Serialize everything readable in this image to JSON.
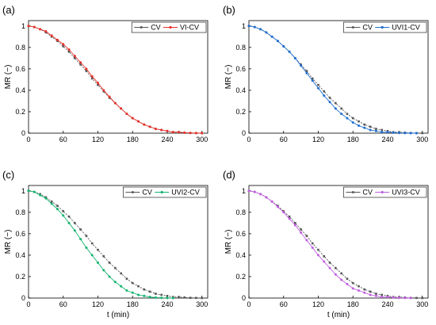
{
  "chart_data": [
    {
      "type": "line",
      "panel_label": "(a)",
      "ylabel": "MR (−)",
      "xlabel": "",
      "xlim": [
        0,
        310
      ],
      "ylim": [
        0,
        1.05
      ],
      "xticks": [
        0,
        60,
        120,
        180,
        240,
        300
      ],
      "yticks": [
        0,
        0.2,
        0.4,
        0.6,
        0.8,
        1
      ],
      "grid": false,
      "legend_position": "top-right",
      "series": [
        {
          "name": "CV",
          "color": "#555555",
          "marker": "square",
          "x": [
            0,
            10,
            20,
            30,
            40,
            50,
            60,
            70,
            80,
            90,
            100,
            110,
            120,
            130,
            140,
            150,
            160,
            170,
            180,
            190,
            200,
            210,
            220,
            230,
            240,
            250,
            260,
            270,
            280,
            290,
            300
          ],
          "y": [
            1,
            0.99,
            0.97,
            0.94,
            0.9,
            0.86,
            0.81,
            0.76,
            0.7,
            0.64,
            0.58,
            0.51,
            0.45,
            0.39,
            0.33,
            0.28,
            0.23,
            0.18,
            0.14,
            0.11,
            0.08,
            0.06,
            0.04,
            0.03,
            0.02,
            0.01,
            0.01,
            0.005,
            0.002,
            0.001,
            0
          ]
        },
        {
          "name": "VI-CV",
          "color": "#e8312a",
          "marker": "circle",
          "x": [
            0,
            10,
            20,
            30,
            40,
            50,
            60,
            70,
            80,
            90,
            100,
            110,
            120,
            130,
            140,
            150,
            160,
            170,
            180,
            190,
            200,
            210,
            220,
            230,
            240,
            250,
            260,
            270,
            280,
            290,
            300
          ],
          "y": [
            1,
            0.99,
            0.97,
            0.95,
            0.91,
            0.87,
            0.83,
            0.78,
            0.72,
            0.66,
            0.6,
            0.53,
            0.47,
            0.4,
            0.34,
            0.28,
            0.23,
            0.18,
            0.14,
            0.11,
            0.08,
            0.06,
            0.04,
            0.03,
            0.02,
            0.01,
            0.01,
            0.005,
            0.002,
            0.001,
            0
          ]
        }
      ]
    },
    {
      "type": "line",
      "panel_label": "(b)",
      "ylabel": "MR (−)",
      "xlabel": "",
      "xlim": [
        0,
        310
      ],
      "ylim": [
        0,
        1.05
      ],
      "xticks": [
        0,
        60,
        120,
        180,
        240,
        300
      ],
      "yticks": [
        0,
        0.2,
        0.4,
        0.6,
        0.8,
        1
      ],
      "grid": false,
      "legend_position": "top-right",
      "series": [
        {
          "name": "CV",
          "color": "#555555",
          "marker": "square",
          "x": [
            0,
            10,
            20,
            30,
            40,
            50,
            60,
            70,
            80,
            90,
            100,
            110,
            120,
            130,
            140,
            150,
            160,
            170,
            180,
            190,
            200,
            210,
            220,
            230,
            240,
            250,
            260,
            270,
            280,
            290,
            300
          ],
          "y": [
            1,
            0.99,
            0.97,
            0.94,
            0.9,
            0.86,
            0.81,
            0.76,
            0.7,
            0.64,
            0.58,
            0.51,
            0.45,
            0.39,
            0.33,
            0.28,
            0.23,
            0.18,
            0.14,
            0.11,
            0.08,
            0.06,
            0.04,
            0.03,
            0.02,
            0.01,
            0.01,
            0.005,
            0.002,
            0.001,
            0
          ]
        },
        {
          "name": "UVI1-CV",
          "color": "#1f6fd1",
          "marker": "circle",
          "x": [
            0,
            10,
            20,
            30,
            40,
            50,
            60,
            70,
            80,
            90,
            100,
            110,
            120,
            130,
            140,
            150,
            160,
            170,
            180,
            190,
            200,
            210,
            220,
            230,
            240,
            250,
            260,
            270,
            280,
            290
          ],
          "y": [
            1,
            0.99,
            0.97,
            0.94,
            0.9,
            0.86,
            0.81,
            0.76,
            0.7,
            0.63,
            0.56,
            0.49,
            0.42,
            0.35,
            0.29,
            0.23,
            0.18,
            0.14,
            0.1,
            0.07,
            0.05,
            0.03,
            0.02,
            0.01,
            0.01,
            0.005,
            0.002,
            0.001,
            0,
            0
          ]
        }
      ]
    },
    {
      "type": "line",
      "panel_label": "(c)",
      "ylabel": "MR (−)",
      "xlabel": "t (min)",
      "xlim": [
        0,
        310
      ],
      "ylim": [
        0,
        1.05
      ],
      "xticks": [
        0,
        60,
        120,
        180,
        240,
        300
      ],
      "yticks": [
        0,
        0.2,
        0.4,
        0.6,
        0.8,
        1
      ],
      "grid": false,
      "legend_position": "top-right",
      "series": [
        {
          "name": "CV",
          "color": "#555555",
          "marker": "square",
          "x": [
            0,
            10,
            20,
            30,
            40,
            50,
            60,
            70,
            80,
            90,
            100,
            110,
            120,
            130,
            140,
            150,
            160,
            170,
            180,
            190,
            200,
            210,
            220,
            230,
            240,
            250,
            260,
            270,
            280,
            290,
            300
          ],
          "y": [
            1,
            0.99,
            0.97,
            0.94,
            0.9,
            0.86,
            0.81,
            0.76,
            0.7,
            0.64,
            0.58,
            0.51,
            0.45,
            0.39,
            0.33,
            0.28,
            0.23,
            0.18,
            0.14,
            0.11,
            0.08,
            0.06,
            0.04,
            0.03,
            0.02,
            0.01,
            0.01,
            0.005,
            0.002,
            0.001,
            0
          ]
        },
        {
          "name": "UVI2-CV",
          "color": "#16b36f",
          "marker": "circle",
          "x": [
            0,
            10,
            20,
            30,
            40,
            50,
            60,
            70,
            80,
            90,
            100,
            110,
            120,
            130,
            140,
            150,
            160,
            170,
            180,
            190,
            200,
            210,
            220,
            230,
            240,
            250
          ],
          "y": [
            1,
            0.99,
            0.96,
            0.93,
            0.88,
            0.83,
            0.77,
            0.7,
            0.63,
            0.55,
            0.47,
            0.4,
            0.33,
            0.26,
            0.2,
            0.15,
            0.11,
            0.07,
            0.05,
            0.03,
            0.02,
            0.01,
            0.005,
            0.002,
            0.001,
            0
          ]
        }
      ]
    },
    {
      "type": "line",
      "panel_label": "(d)",
      "ylabel": "MR (−)",
      "xlabel": "t (min)",
      "xlim": [
        0,
        310
      ],
      "ylim": [
        0,
        1.05
      ],
      "xticks": [
        0,
        60,
        120,
        180,
        240,
        300
      ],
      "yticks": [
        0,
        0.2,
        0.4,
        0.6,
        0.8,
        1
      ],
      "grid": false,
      "legend_position": "top-right",
      "series": [
        {
          "name": "CV",
          "color": "#555555",
          "marker": "square",
          "x": [
            0,
            10,
            20,
            30,
            40,
            50,
            60,
            70,
            80,
            90,
            100,
            110,
            120,
            130,
            140,
            150,
            160,
            170,
            180,
            190,
            200,
            210,
            220,
            230,
            240,
            250,
            260,
            270,
            280,
            290,
            300
          ],
          "y": [
            1,
            0.99,
            0.97,
            0.94,
            0.9,
            0.86,
            0.81,
            0.76,
            0.7,
            0.64,
            0.58,
            0.51,
            0.45,
            0.39,
            0.33,
            0.28,
            0.23,
            0.18,
            0.14,
            0.11,
            0.08,
            0.06,
            0.04,
            0.03,
            0.02,
            0.01,
            0.01,
            0.005,
            0.002,
            0.001,
            0
          ]
        },
        {
          "name": "UVI3-CV",
          "color": "#c060e0",
          "marker": "circle",
          "x": [
            0,
            10,
            20,
            30,
            40,
            50,
            60,
            70,
            80,
            90,
            100,
            110,
            120,
            130,
            140,
            150,
            160,
            170,
            180,
            190,
            200,
            210,
            220,
            230,
            240,
            250,
            260,
            270,
            280
          ],
          "y": [
            1,
            0.99,
            0.97,
            0.94,
            0.9,
            0.85,
            0.8,
            0.74,
            0.68,
            0.61,
            0.54,
            0.47,
            0.4,
            0.34,
            0.28,
            0.22,
            0.17,
            0.13,
            0.09,
            0.07,
            0.05,
            0.03,
            0.02,
            0.01,
            0.01,
            0.005,
            0.002,
            0.001,
            0
          ]
        }
      ]
    }
  ]
}
